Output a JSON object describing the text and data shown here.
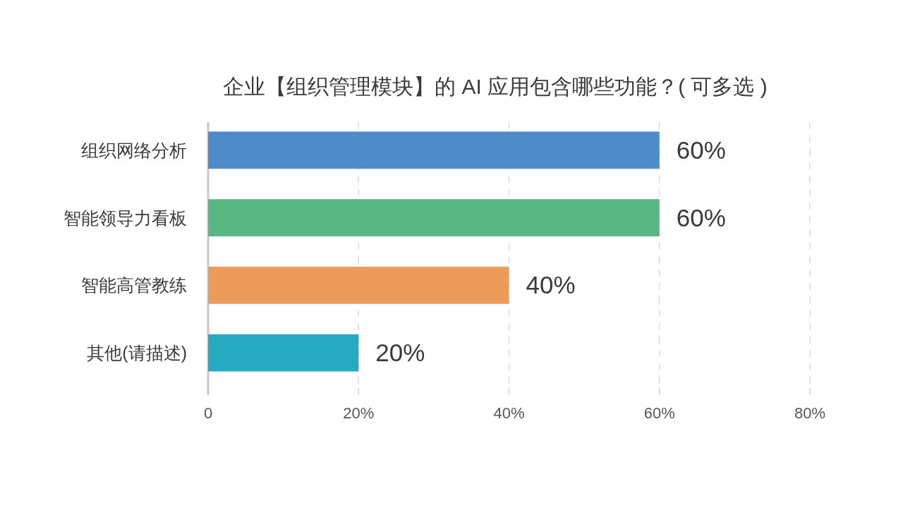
{
  "chart_data": {
    "type": "bar",
    "orientation": "horizontal",
    "title": "企业【组织管理模块】的 AI 应用包含哪些功能？( 可多选 )",
    "categories": [
      "组织网络分析",
      "智能领导力看板",
      "智能高管教练",
      "其他(请描述)"
    ],
    "values": [
      60,
      60,
      40,
      20
    ],
    "colors": [
      "#4f8bc9",
      "#58b783",
      "#ec9b5a",
      "#27a9c1"
    ],
    "value_labels": [
      "60%",
      "60%",
      "40%",
      "20%"
    ],
    "xlim": [
      0,
      80
    ],
    "xticks": [
      0,
      {
        "value": 20,
        "label": "20%"
      },
      {
        "value": 40,
        "label": "40%"
      },
      {
        "value": 60,
        "label": "60%"
      },
      {
        "value": 80,
        "label": "80%"
      }
    ],
    "grid": "x"
  }
}
